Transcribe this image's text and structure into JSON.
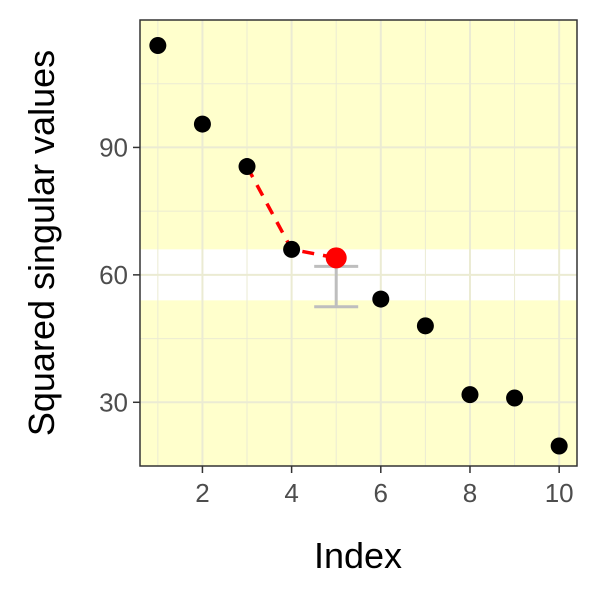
{
  "chart_data": {
    "type": "scatter",
    "xlabel": "Index",
    "ylabel": "Squared singular values",
    "xlim": [
      0.6,
      10.4
    ],
    "ylim": [
      15,
      120
    ],
    "x_ticks": [
      2,
      4,
      6,
      8,
      10
    ],
    "x_tick_labels": [
      "2",
      "4",
      "6",
      "8",
      "10"
    ],
    "y_ticks": [
      30,
      60,
      90
    ],
    "y_tick_labels": [
      "30",
      "60",
      "90"
    ],
    "grid": true,
    "legend": "none",
    "background_color": "#ffffcc",
    "band": {
      "y_range": [
        54,
        66
      ],
      "color": "#ffffff"
    },
    "series": [
      {
        "x": [
          1,
          2,
          3,
          4,
          5,
          6,
          7,
          8,
          9,
          10
        ],
        "y": [
          114,
          95.5,
          85.5,
          66,
          64,
          54.3,
          48,
          31.8,
          31,
          19.7
        ],
        "color": "#000000"
      }
    ],
    "highlight_point": {
      "x": 5,
      "y": 64,
      "color": "#ff0000"
    },
    "dashed_segment": {
      "x": [
        3,
        4,
        5
      ],
      "y": [
        85.5,
        66,
        64
      ],
      "color": "#ff0000"
    },
    "error_bar": {
      "x": 5,
      "ymin": 52.5,
      "ymax": 62,
      "color": "#bebebe"
    }
  }
}
